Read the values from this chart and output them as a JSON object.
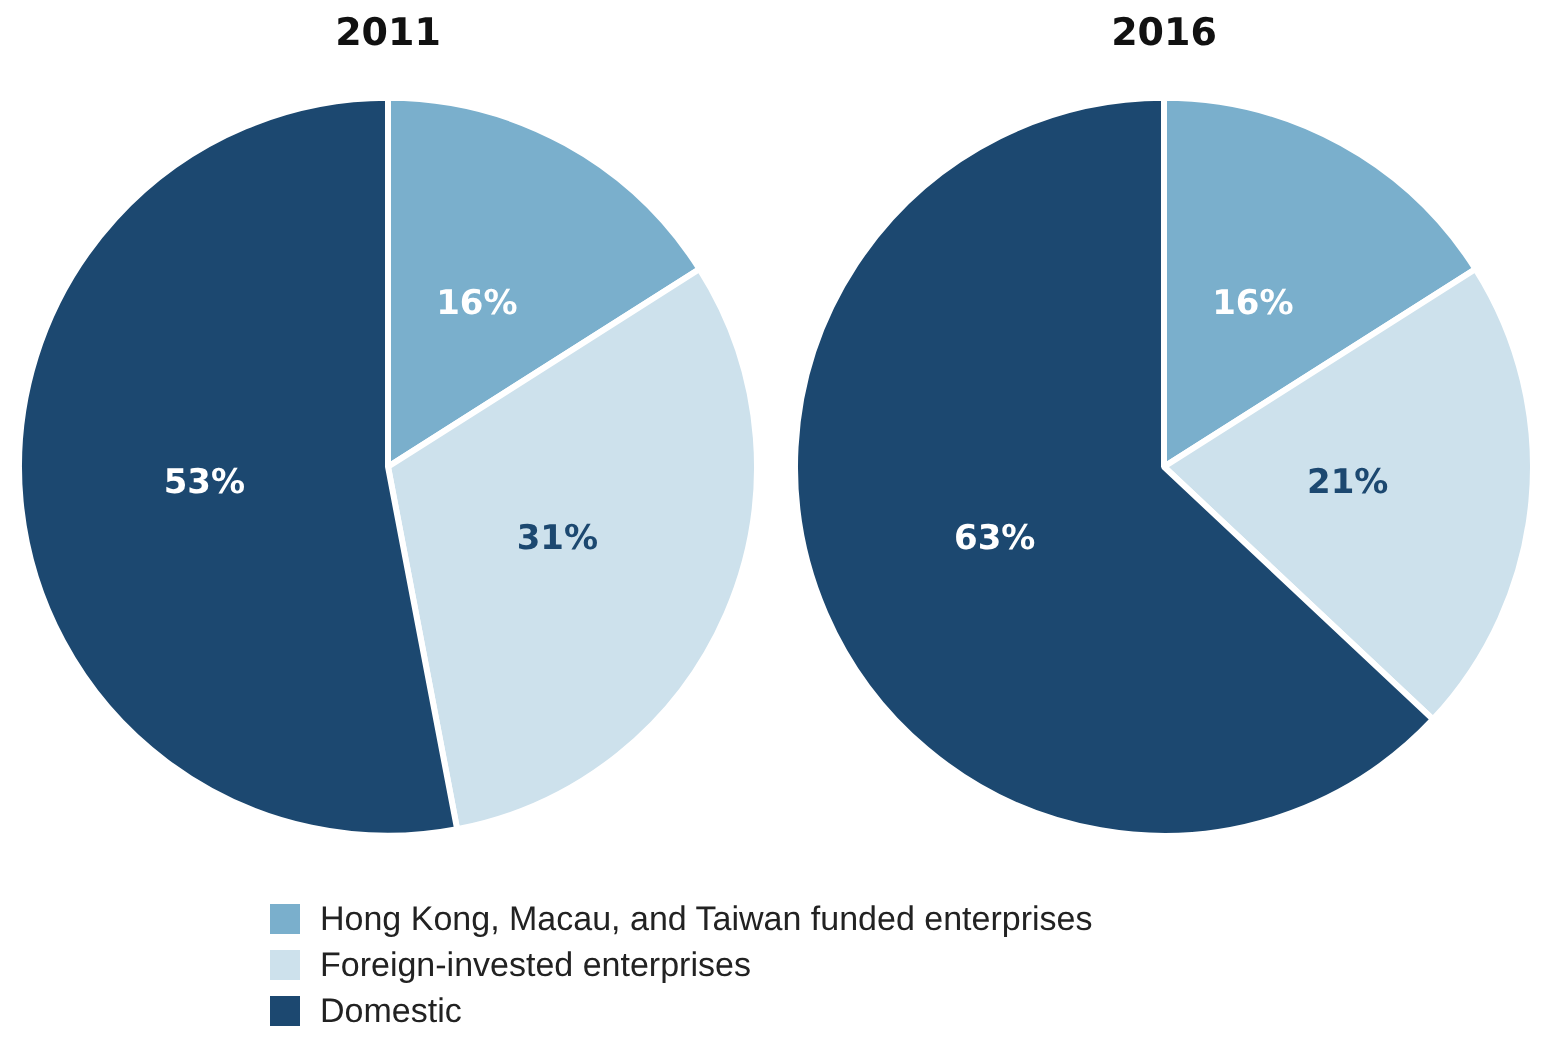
{
  "chart_data": [
    {
      "type": "pie",
      "title": "2011",
      "categories": [
        "Hong Kong, Macau, and Taiwan funded enterprises",
        "Foreign-invested enterprises",
        "Domestic"
      ],
      "values": [
        16,
        31,
        53
      ],
      "colors": [
        "#7aafcc",
        "#cde1ec",
        "#1c4870"
      ],
      "value_labels": [
        "16%",
        "31%",
        "53%"
      ],
      "legend": "bottom"
    },
    {
      "type": "pie",
      "title": "2016",
      "categories": [
        null,
        null,
        null
      ],
      "values": [
        16,
        21,
        63
      ],
      "colors": [
        "#7aafcc",
        "#cde1ec",
        "#1c4870"
      ],
      "value_labels": [
        "16%",
        "21%",
        "63%"
      ]
    }
  ]
}
